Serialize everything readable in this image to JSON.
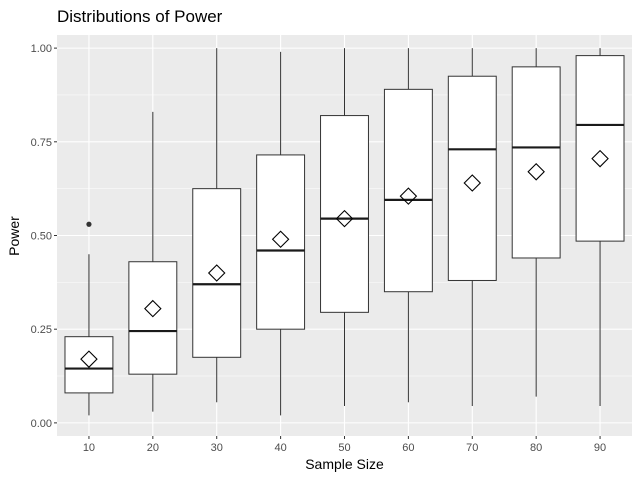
{
  "chart_data": {
    "type": "box",
    "title": "Distributions of Power",
    "xlabel": "Sample Size",
    "ylabel": "Power",
    "ylim": [
      -0.035,
      1.035
    ],
    "y_ticks": [
      0.0,
      0.25,
      0.5,
      0.75,
      1.0
    ],
    "y_tick_labels": [
      "0.00",
      "0.25",
      "0.50",
      "0.75",
      "1.00"
    ],
    "categories": [
      "10",
      "20",
      "30",
      "40",
      "50",
      "60",
      "70",
      "80",
      "90"
    ],
    "grid": true,
    "legend": "none",
    "colors": {
      "panel_background": "#ebebeb",
      "grid_major": "#ffffff",
      "box_fill": "#ffffff",
      "box_stroke": "#333333",
      "median": "#1a1a1a",
      "mean_marker": "#000000",
      "outlier": "#333333"
    },
    "series": [
      {
        "boxes": [
          {
            "category": "10",
            "min": 0.02,
            "q1": 0.08,
            "median": 0.145,
            "q3": 0.23,
            "max": 0.45,
            "mean": 0.17,
            "outliers": [
              0.53
            ]
          },
          {
            "category": "20",
            "min": 0.03,
            "q1": 0.13,
            "median": 0.245,
            "q3": 0.43,
            "max": 0.83,
            "mean": 0.305,
            "outliers": []
          },
          {
            "category": "30",
            "min": 0.055,
            "q1": 0.175,
            "median": 0.37,
            "q3": 0.625,
            "max": 1.0,
            "mean": 0.4,
            "outliers": []
          },
          {
            "category": "40",
            "min": 0.02,
            "q1": 0.25,
            "median": 0.46,
            "q3": 0.715,
            "max": 0.99,
            "mean": 0.49,
            "outliers": []
          },
          {
            "category": "50",
            "min": 0.045,
            "q1": 0.295,
            "median": 0.545,
            "q3": 0.82,
            "max": 1.0,
            "mean": 0.545,
            "outliers": []
          },
          {
            "category": "60",
            "min": 0.055,
            "q1": 0.35,
            "median": 0.595,
            "q3": 0.89,
            "max": 1.0,
            "mean": 0.605,
            "outliers": []
          },
          {
            "category": "70",
            "min": 0.045,
            "q1": 0.38,
            "median": 0.73,
            "q3": 0.925,
            "max": 1.0,
            "mean": 0.64,
            "outliers": []
          },
          {
            "category": "80",
            "min": 0.07,
            "q1": 0.44,
            "median": 0.735,
            "q3": 0.95,
            "max": 1.0,
            "mean": 0.67,
            "outliers": []
          },
          {
            "category": "90",
            "min": 0.045,
            "q1": 0.485,
            "median": 0.795,
            "q3": 0.98,
            "max": 1.0,
            "mean": 0.705,
            "outliers": []
          }
        ]
      }
    ]
  }
}
